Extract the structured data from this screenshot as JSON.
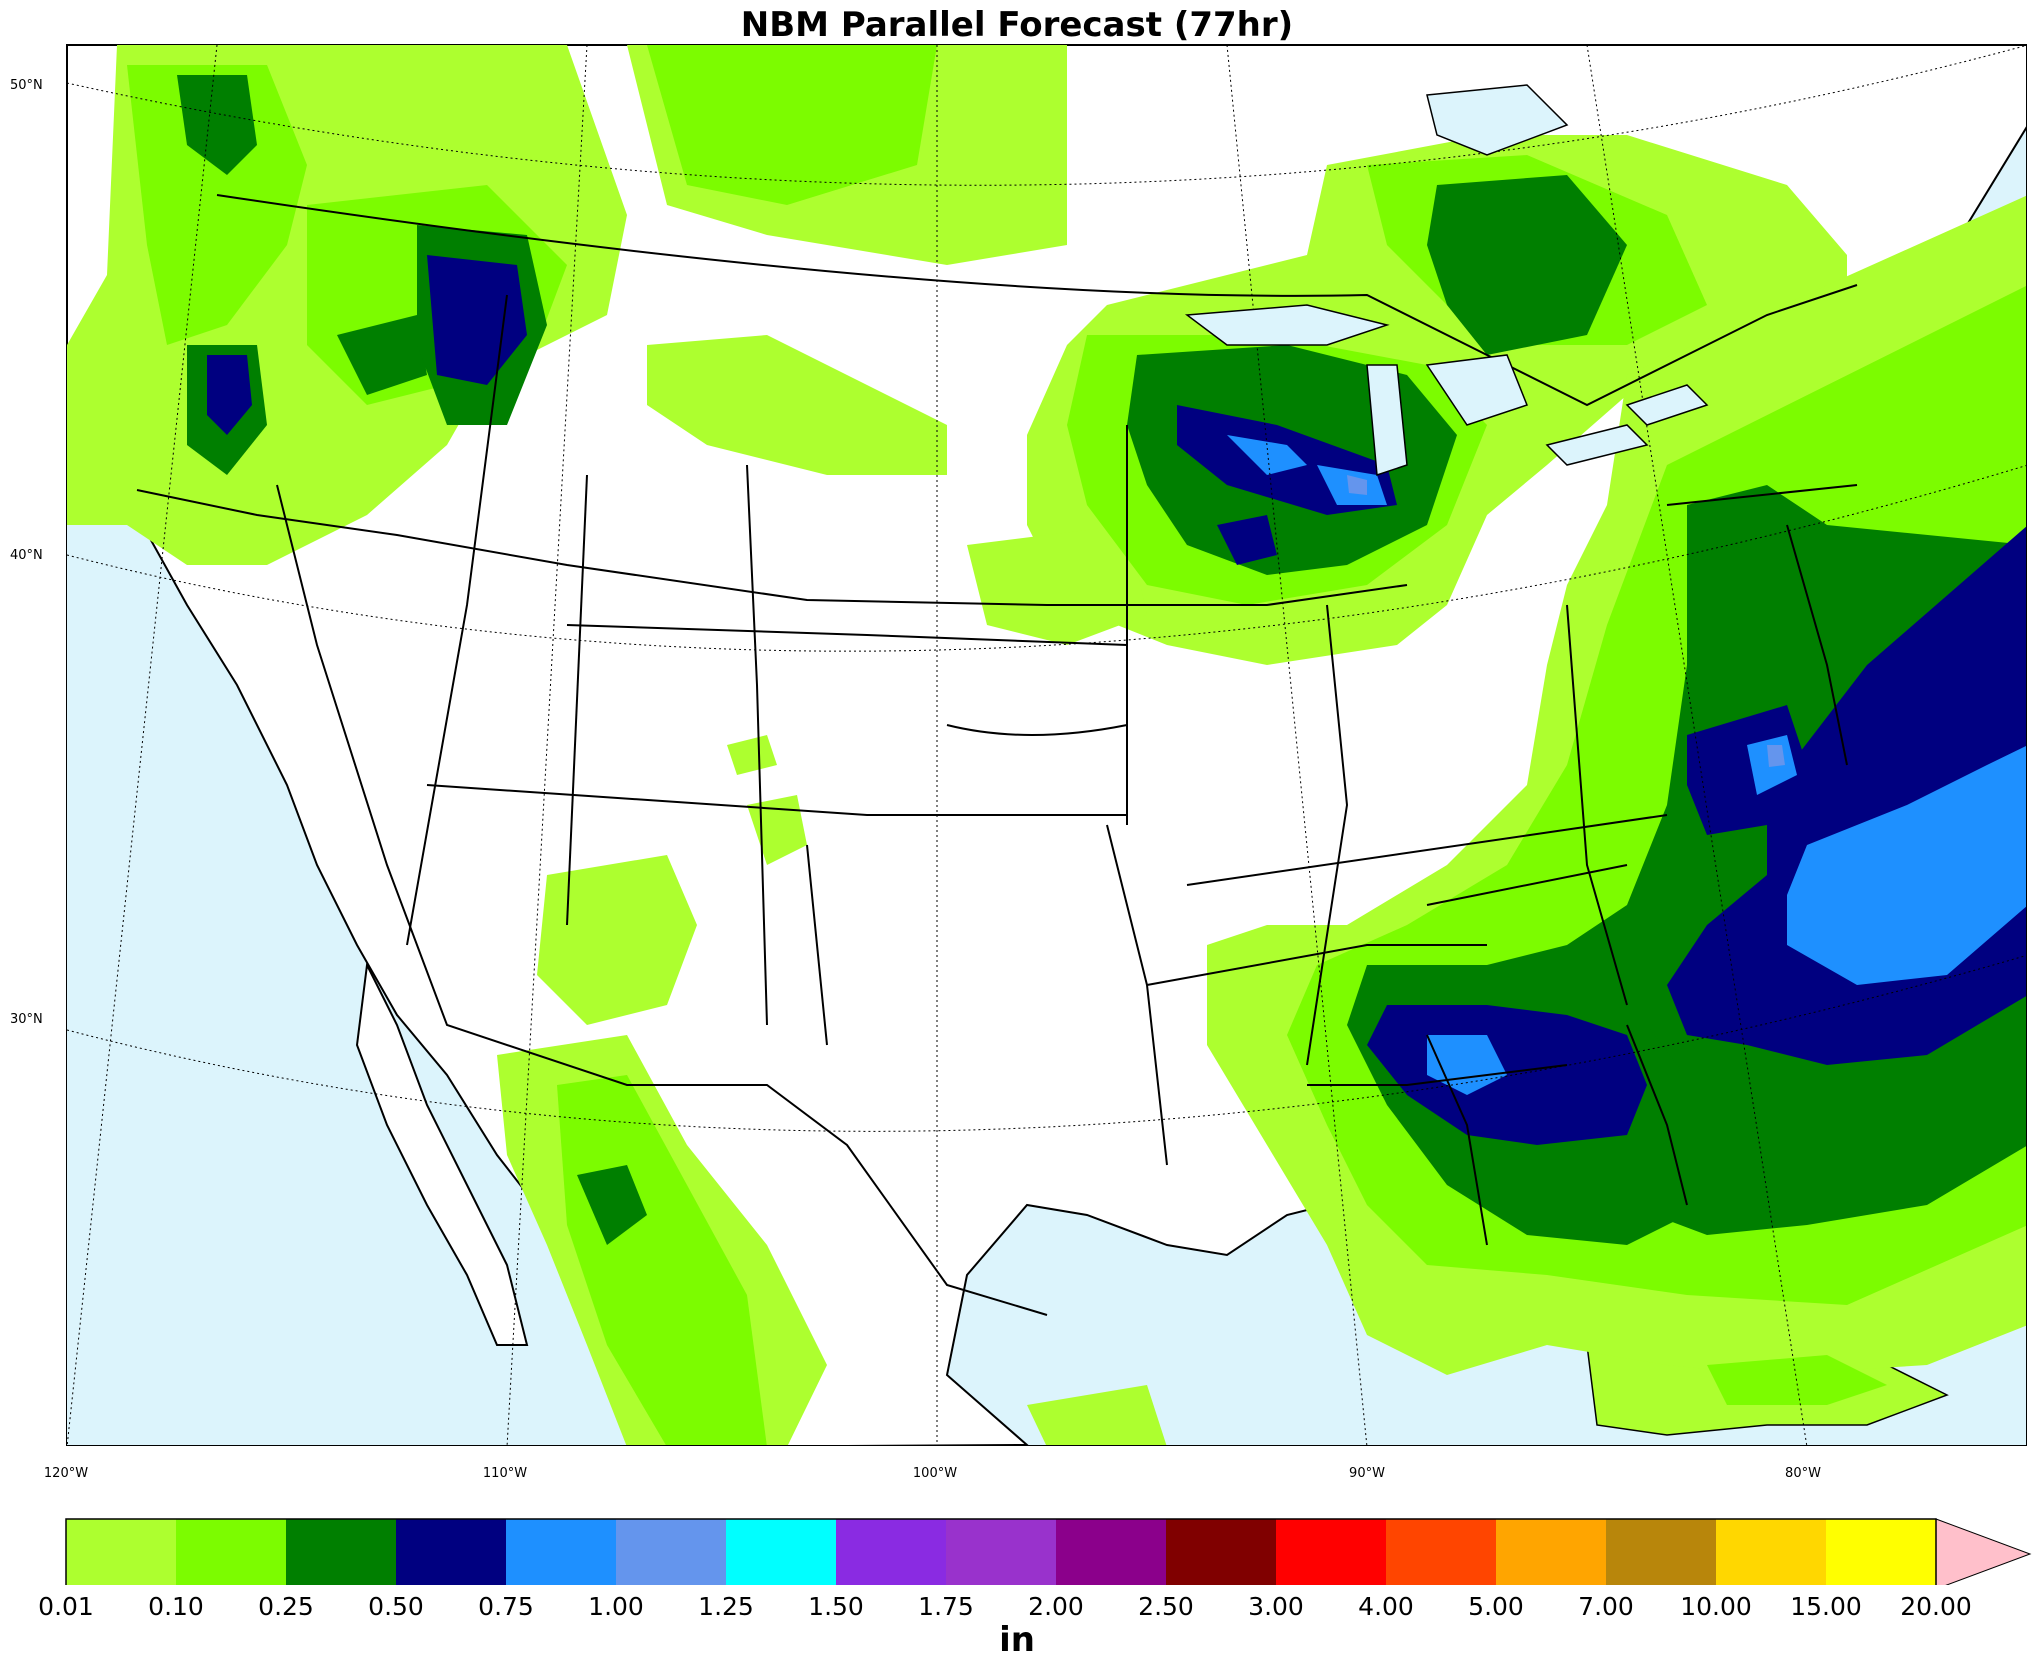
{
  "title": "NBM Parallel Forecast (77hr)",
  "lat_labels": [
    "50°N",
    "40°N",
    "30°N"
  ],
  "lon_labels": [
    "120°W",
    "110°W",
    "100°W",
    "90°W",
    "80°W"
  ],
  "colorbar": {
    "unit": "in",
    "ticks": [
      "0.01",
      "0.10",
      "0.25",
      "0.50",
      "0.75",
      "1.00",
      "1.25",
      "1.50",
      "1.75",
      "2.00",
      "2.50",
      "3.00",
      "4.00",
      "5.00",
      "7.00",
      "10.00",
      "15.00",
      "20.00"
    ],
    "colors": [
      "#adff2f",
      "#7cfc00",
      "#007f00",
      "#000080",
      "#1e90ff",
      "#6495ed",
      "#00ffff",
      "#8a2be2",
      "#9932cc",
      "#8b008b",
      "#800000",
      "#ff0000",
      "#ff4500",
      "#ffa500",
      "#b8860b",
      "#ffd700",
      "#ffff00"
    ],
    "extend_color": "#ffc0cb"
  },
  "map_colors": {
    "ocean": "#dcf4fc",
    "land": "#ffffff"
  }
}
